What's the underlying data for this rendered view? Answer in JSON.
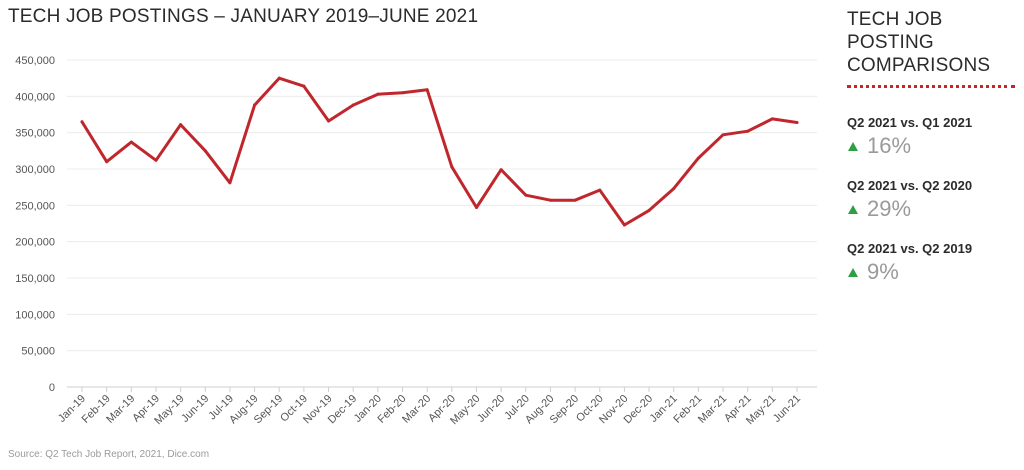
{
  "title": "TECH JOB POSTINGS – JANUARY 2019–JUNE 2021",
  "source": "Source: Q2 Tech Job Report, 2021, Dice.com",
  "sidebar": {
    "title_line1": "TECH JOB POSTING",
    "title_line2": "COMPARISONS",
    "accent_color": "#c8242c",
    "up_color": "#2ea043",
    "comparisons": [
      {
        "label": "Q2 2021 vs. Q1 2021",
        "value": "16%",
        "icon": "up-triangle-icon"
      },
      {
        "label": "Q2 2021 vs. Q2 2020",
        "value": "29%",
        "icon": "up-triangle-icon"
      },
      {
        "label": "Q2 2021 vs. Q2 2019",
        "value": "9%",
        "icon": "up-triangle-icon"
      }
    ]
  },
  "chart_data": {
    "type": "line",
    "title": "TECH JOB POSTINGS – JANUARY 2019–JUNE 2021",
    "xlabel": "",
    "ylabel": "",
    "ylim": [
      0,
      450000
    ],
    "y_ticks": [
      0,
      50000,
      100000,
      150000,
      200000,
      250000,
      300000,
      350000,
      400000,
      450000
    ],
    "y_tick_labels": [
      "0",
      "50,000",
      "100,000",
      "150,000",
      "200,000",
      "250,000",
      "300,000",
      "350,000",
      "400,000",
      "450,000"
    ],
    "grid": true,
    "line_color": "#c0272d",
    "categories": [
      "Jan-19",
      "Feb-19",
      "Mar-19",
      "Apr-19",
      "May-19",
      "Jun-19",
      "Jul-19",
      "Aug-19",
      "Sep-19",
      "Oct-19",
      "Nov-19",
      "Dec-19",
      "Jan-20",
      "Feb-20",
      "Mar-20",
      "Apr-20",
      "May-20",
      "Jun-20",
      "Jul-20",
      "Aug-20",
      "Sep-20",
      "Oct-20",
      "Nov-20",
      "Dec-20",
      "Jan-21",
      "Feb-21",
      "Mar-21",
      "Apr-21",
      "May-21",
      "Jun-21"
    ],
    "series": [
      {
        "values": [
          365000,
          310000,
          337000,
          312000,
          361000,
          325000,
          281000,
          388000,
          425000,
          414000,
          366000,
          388000,
          403000,
          405000,
          409000,
          303000,
          247000,
          299000,
          264000,
          257000,
          257000,
          271000,
          223000,
          243000,
          273000,
          315000,
          347000,
          352000,
          369000,
          364000
        ]
      }
    ]
  }
}
